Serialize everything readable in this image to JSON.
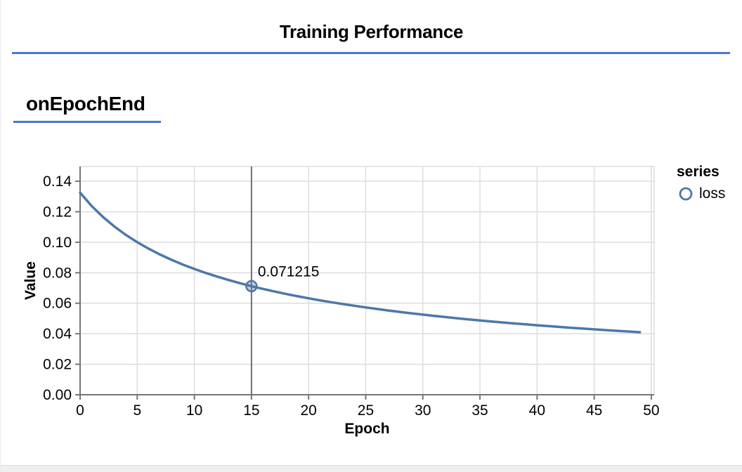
{
  "page": {
    "title": "Training Performance",
    "section_heading": "onEpochEnd"
  },
  "colors": {
    "accent_blue": "#4878d0",
    "series_blue": "#4c78a8",
    "grid": "#dddddd",
    "axis": "#757575",
    "crosshair": "#6f6f6f",
    "text": "#000000"
  },
  "legend": {
    "title": "series",
    "items": [
      {
        "label": "loss",
        "symbol": "open-circle"
      }
    ]
  },
  "chart_data": {
    "type": "line",
    "title": "",
    "xlabel": "Epoch",
    "ylabel": "Value",
    "x_ticks": [
      0,
      5,
      10,
      15,
      20,
      25,
      30,
      35,
      40,
      45,
      50
    ],
    "y_ticks": [
      0.0,
      0.02,
      0.04,
      0.06,
      0.08,
      0.1,
      0.12,
      0.14
    ],
    "xlim": [
      0,
      50.25
    ],
    "ylim": [
      0,
      0.1497
    ],
    "grid": true,
    "legend_position": "right",
    "series": [
      {
        "name": "loss",
        "x": [
          0,
          1,
          2,
          3,
          4,
          5,
          6,
          7,
          8,
          9,
          10,
          11,
          12,
          13,
          14,
          15,
          16,
          17,
          18,
          19,
          20,
          21,
          22,
          23,
          24,
          25,
          26,
          27,
          28,
          29,
          30,
          31,
          32,
          33,
          34,
          35,
          36,
          37,
          38,
          39,
          40,
          41,
          42,
          43,
          44,
          45,
          46,
          47,
          48,
          49
        ],
        "y": [
          0.13251,
          0.123877,
          0.116586,
          0.110312,
          0.104855,
          0.100051,
          0.095777,
          0.091951,
          0.088498,
          0.085363,
          0.082504,
          0.079879,
          0.077465,
          0.075236,
          0.073159,
          0.071215,
          0.06943,
          0.067742,
          0.066156,
          0.064664,
          0.063256,
          0.061926,
          0.060673,
          0.059474,
          0.058339,
          0.057254,
          0.056228,
          0.055244,
          0.054304,
          0.053404,
          0.052544,
          0.051718,
          0.050927,
          0.050164,
          0.049429,
          0.048725,
          0.048047,
          0.047391,
          0.046758,
          0.046148,
          0.045556,
          0.044985,
          0.044432,
          0.043897,
          0.043379,
          0.042875,
          0.042385,
          0.04191,
          0.041449,
          0.041
        ]
      }
    ],
    "hover_point": {
      "epoch": 15,
      "value": 0.071215,
      "label": "0.071215"
    }
  }
}
